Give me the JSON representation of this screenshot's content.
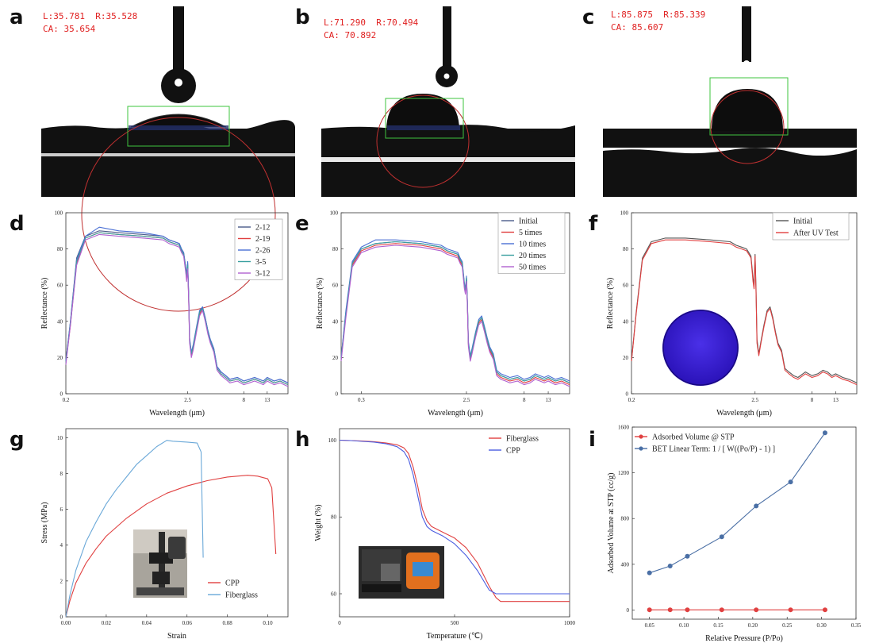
{
  "panel_letters": [
    "a",
    "b",
    "c",
    "d",
    "e",
    "f",
    "g",
    "h",
    "i"
  ],
  "contact_angle": [
    {
      "panel": "a",
      "line1": "L:35.781  R:35.528",
      "line2": "CA: 35.654"
    },
    {
      "panel": "b",
      "line1": "L:71.290  R:70.494",
      "line2": "CA: 70.892"
    },
    {
      "panel": "c",
      "line1": "L:85.875  R:85.339",
      "line2": "CA: 85.607"
    }
  ],
  "colors": {
    "red": "#e04040",
    "blue": "#4a6cd4",
    "slate": "#4a6fa5",
    "ca_text": "#e02020",
    "uv_disk": "#3b22d6"
  },
  "chart_data": [
    {
      "panel": "d",
      "type": "line",
      "xscale": "log",
      "xlabel": "Wavelength (μm)",
      "ylabel": "Reflectance (%)",
      "xlim": [
        0.2,
        20
      ],
      "ylim": [
        0,
        100
      ],
      "xticks": [
        0.2,
        2.5,
        8,
        13
      ],
      "xtick_labels": [
        "0.2",
        "2.5",
        "8",
        "13"
      ],
      "yticks": [
        0,
        20,
        40,
        60,
        80,
        100
      ],
      "ytick_labels": [
        "0",
        "20",
        "40",
        "60",
        "80",
        "100"
      ],
      "legend": "top-right",
      "x": [
        0.2,
        0.22,
        0.25,
        0.3,
        0.4,
        0.6,
        1.0,
        1.5,
        1.7,
        1.9,
        2.1,
        2.2,
        2.3,
        2.4,
        2.45,
        2.5,
        2.55,
        2.6,
        2.7,
        2.8,
        3.0,
        3.2,
        3.4,
        3.6,
        3.8,
        4.0,
        4.3,
        4.6,
        5.0,
        5.5,
        6,
        7,
        8,
        9,
        10,
        11,
        12,
        13,
        15,
        17,
        20
      ],
      "series": [
        {
          "name": "2-12",
          "color": "#4a5a8a",
          "values": [
            18,
            40,
            75,
            87,
            90,
            89,
            88,
            87,
            85,
            84,
            83,
            80,
            78,
            70,
            65,
            72,
            55,
            30,
            22,
            26,
            36,
            45,
            48,
            42,
            35,
            30,
            25,
            15,
            12,
            10,
            8,
            9,
            7,
            8,
            9,
            8,
            7,
            9,
            7,
            8,
            6
          ]
        },
        {
          "name": "2-19",
          "color": "#e04040",
          "values": [
            17,
            38,
            72,
            86,
            89,
            88,
            87,
            86,
            84,
            83,
            82,
            79,
            77,
            68,
            63,
            70,
            53,
            29,
            21,
            25,
            35,
            44,
            47,
            41,
            34,
            29,
            24,
            14,
            11,
            9,
            7,
            8,
            6,
            7,
            8,
            7,
            6,
            8,
            6,
            7,
            5
          ]
        },
        {
          "name": "2-26",
          "color": "#4a6fd4",
          "values": [
            18,
            40,
            74,
            87,
            92,
            90,
            89,
            87,
            85,
            84,
            83,
            80,
            78,
            70,
            66,
            73,
            56,
            31,
            23,
            27,
            37,
            46,
            48,
            42,
            35,
            30,
            25,
            15,
            12,
            10,
            8,
            9,
            7,
            8,
            9,
            8,
            7,
            9,
            7,
            8,
            6
          ]
        },
        {
          "name": "3-5",
          "color": "#3aa0a0",
          "values": [
            17,
            39,
            73,
            86,
            89,
            88,
            87,
            86,
            84,
            83,
            82,
            79,
            77,
            69,
            64,
            71,
            54,
            30,
            22,
            26,
            36,
            45,
            47,
            41,
            34,
            29,
            24,
            14,
            11,
            9,
            7,
            8,
            6,
            7,
            8,
            7,
            6,
            8,
            6,
            7,
            5
          ]
        },
        {
          "name": "3-12",
          "color": "#b060d0",
          "values": [
            16,
            38,
            71,
            85,
            88,
            87,
            86,
            85,
            83,
            82,
            81,
            78,
            76,
            67,
            62,
            69,
            52,
            28,
            20,
            24,
            34,
            43,
            46,
            40,
            33,
            28,
            23,
            13,
            10,
            8,
            6,
            7,
            5,
            6,
            7,
            6,
            5,
            7,
            5,
            6,
            4
          ]
        }
      ]
    },
    {
      "panel": "e",
      "type": "line",
      "xscale": "log",
      "xlabel": "Wavelength (μm)",
      "ylabel": "Reflectance (%)",
      "xlim": [
        0.2,
        20
      ],
      "ylim": [
        0,
        100
      ],
      "xticks": [
        0.3,
        2.5,
        8,
        13
      ],
      "xtick_labels": [
        "0.3",
        "2.5",
        "8",
        "13"
      ],
      "yticks": [
        0,
        20,
        40,
        60,
        80,
        100
      ],
      "ytick_labels": [
        "0",
        "20",
        "40",
        "60",
        "80",
        "100"
      ],
      "legend": "top-right",
      "x": [
        0.2,
        0.22,
        0.25,
        0.3,
        0.4,
        0.6,
        1.0,
        1.5,
        1.7,
        1.9,
        2.1,
        2.2,
        2.3,
        2.4,
        2.45,
        2.5,
        2.55,
        2.6,
        2.7,
        2.8,
        3.0,
        3.2,
        3.4,
        3.6,
        3.8,
        4.0,
        4.3,
        4.6,
        5.0,
        5.5,
        6,
        7,
        8,
        9,
        10,
        11,
        12,
        13,
        15,
        17,
        20
      ],
      "series": [
        {
          "name": "Initial",
          "color": "#4a5a8a",
          "values": [
            20,
            45,
            72,
            80,
            83,
            84,
            83,
            81,
            79,
            78,
            77,
            74,
            72,
            60,
            57,
            64,
            50,
            28,
            20,
            24,
            33,
            40,
            42,
            36,
            30,
            25,
            21,
            12,
            10,
            9,
            8,
            9,
            7,
            8,
            10,
            9,
            8,
            9,
            7,
            8,
            6
          ]
        },
        {
          "name": "5 times",
          "color": "#e04040",
          "values": [
            19,
            44,
            71,
            79,
            82,
            83,
            82,
            80,
            78,
            77,
            76,
            73,
            71,
            59,
            56,
            63,
            49,
            27,
            19,
            23,
            32,
            39,
            41,
            35,
            29,
            24,
            20,
            11,
            9,
            8,
            7,
            8,
            6,
            7,
            9,
            8,
            7,
            8,
            6,
            7,
            5
          ]
        },
        {
          "name": "10 times",
          "color": "#4a6fd4",
          "values": [
            20,
            46,
            73,
            81,
            85,
            85,
            84,
            82,
            80,
            79,
            78,
            75,
            73,
            61,
            58,
            65,
            51,
            29,
            21,
            25,
            34,
            41,
            43,
            37,
            31,
            26,
            22,
            13,
            11,
            10,
            9,
            10,
            8,
            9,
            11,
            10,
            9,
            10,
            8,
            9,
            7
          ]
        },
        {
          "name": "20 times",
          "color": "#3aa0a0",
          "values": [
            19,
            44,
            72,
            80,
            83,
            84,
            83,
            81,
            79,
            78,
            77,
            74,
            72,
            60,
            57,
            64,
            50,
            28,
            20,
            24,
            33,
            40,
            42,
            36,
            30,
            25,
            21,
            12,
            10,
            9,
            8,
            9,
            7,
            8,
            10,
            9,
            8,
            9,
            7,
            8,
            6
          ]
        },
        {
          "name": "50 times",
          "color": "#b060d0",
          "values": [
            18,
            42,
            70,
            78,
            81,
            82,
            81,
            79,
            77,
            76,
            75,
            72,
            70,
            58,
            55,
            62,
            48,
            26,
            18,
            22,
            31,
            38,
            40,
            34,
            28,
            23,
            19,
            10,
            8,
            7,
            6,
            7,
            5,
            6,
            8,
            7,
            6,
            7,
            5,
            6,
            4
          ]
        }
      ]
    },
    {
      "panel": "f",
      "type": "line",
      "xscale": "log",
      "xlabel": "Wavelength (μm)",
      "ylabel": "Reflectance (%)",
      "xlim": [
        0.2,
        20
      ],
      "ylim": [
        0,
        100
      ],
      "xticks": [
        0.2,
        2.5,
        8,
        13
      ],
      "xtick_labels": [
        "0.2",
        "2.5",
        "8",
        "13"
      ],
      "yticks": [
        0,
        20,
        40,
        60,
        80,
        100
      ],
      "ytick_labels": [
        "0",
        "20",
        "40",
        "60",
        "80",
        "100"
      ],
      "legend": "top-right",
      "x": [
        0.2,
        0.22,
        0.25,
        0.3,
        0.4,
        0.6,
        1.0,
        1.5,
        1.7,
        1.9,
        2.1,
        2.2,
        2.3,
        2.4,
        2.45,
        2.5,
        2.55,
        2.6,
        2.7,
        2.8,
        3.0,
        3.2,
        3.4,
        3.6,
        3.8,
        4.0,
        4.3,
        4.6,
        5.0,
        5.5,
        6,
        7,
        8,
        9,
        10,
        11,
        12,
        13,
        15,
        17,
        20
      ],
      "series": [
        {
          "name": "Initial",
          "color": "#555555",
          "values": [
            18,
            45,
            75,
            84,
            86,
            86,
            85,
            84,
            82,
            81,
            80,
            78,
            76,
            64,
            60,
            77,
            58,
            30,
            22,
            28,
            38,
            46,
            48,
            42,
            34,
            28,
            24,
            14,
            12,
            10,
            9,
            12,
            10,
            11,
            13,
            12,
            10,
            11,
            9,
            8,
            6
          ]
        },
        {
          "name": "After UV Test",
          "color": "#e04040",
          "values": [
            18,
            44,
            74,
            83,
            85,
            85,
            84,
            83,
            81,
            80,
            79,
            77,
            75,
            62,
            58,
            76,
            56,
            28,
            21,
            27,
            37,
            45,
            47,
            41,
            33,
            27,
            23,
            13,
            11,
            9,
            8,
            11,
            9,
            10,
            12,
            11,
            9,
            10,
            8,
            7,
            5
          ]
        }
      ]
    },
    {
      "panel": "g",
      "type": "line",
      "xlabel": "Strain",
      "ylabel": "Stress (MPa)",
      "xlim": [
        0,
        0.11
      ],
      "ylim": [
        0,
        10.5
      ],
      "xticks": [
        0,
        0.02,
        0.04,
        0.06,
        0.08,
        0.1
      ],
      "xtick_labels": [
        "0.00",
        "0.02",
        "0.04",
        "0.06",
        "0.08",
        "0.10"
      ],
      "yticks": [
        0,
        2,
        4,
        6,
        8,
        10
      ],
      "ytick_labels": [
        "0",
        "2",
        "4",
        "6",
        "8",
        "10"
      ],
      "legend": "bottom-right",
      "series": [
        {
          "name": "CPP",
          "color": "#e04040",
          "x": [
            0,
            0.002,
            0.005,
            0.01,
            0.015,
            0.02,
            0.03,
            0.04,
            0.05,
            0.06,
            0.07,
            0.08,
            0.09,
            0.095,
            0.1,
            0.102,
            0.104
          ],
          "y": [
            0,
            0.9,
            1.9,
            3.0,
            3.8,
            4.5,
            5.5,
            6.3,
            6.9,
            7.3,
            7.6,
            7.8,
            7.9,
            7.85,
            7.7,
            7.2,
            3.5
          ]
        },
        {
          "name": "Fiberglass",
          "color": "#6aa8d8",
          "x": [
            0,
            0.002,
            0.005,
            0.01,
            0.015,
            0.02,
            0.025,
            0.03,
            0.035,
            0.04,
            0.045,
            0.05,
            0.053,
            0.06,
            0.065,
            0.067,
            0.068
          ],
          "y": [
            0,
            1.2,
            2.6,
            4.2,
            5.3,
            6.3,
            7.1,
            7.8,
            8.5,
            9.0,
            9.5,
            9.85,
            9.8,
            9.75,
            9.7,
            9.2,
            3.3
          ]
        }
      ]
    },
    {
      "panel": "h",
      "type": "line",
      "xlabel": "Temperature (℃)",
      "ylabel": "Weight (%)",
      "xlim": [
        0,
        1000
      ],
      "ylim": [
        54,
        103
      ],
      "xticks": [
        0,
        500,
        1000
      ],
      "xtick_labels": [
        "0",
        "500",
        "1000"
      ],
      "yticks": [
        60,
        80,
        100
      ],
      "ytick_labels": [
        "60",
        "80",
        "100"
      ],
      "legend": "top-right",
      "series": [
        {
          "name": "Fiberglass",
          "color": "#e04040",
          "x": [
            0,
            50,
            100,
            150,
            200,
            250,
            280,
            300,
            320,
            340,
            360,
            380,
            400,
            450,
            500,
            550,
            600,
            650,
            680,
            700,
            750,
            800,
            900,
            1000
          ],
          "y": [
            100,
            99.9,
            99.8,
            99.6,
            99.3,
            98.8,
            98,
            96.5,
            93,
            88,
            82,
            79,
            77.5,
            76,
            74.5,
            72,
            68,
            62,
            59,
            58,
            58,
            58,
            58,
            58
          ]
        },
        {
          "name": "CPP",
          "color": "#4a5ce0",
          "x": [
            0,
            50,
            100,
            150,
            200,
            250,
            280,
            300,
            320,
            340,
            360,
            380,
            400,
            450,
            500,
            550,
            600,
            650,
            680,
            700,
            750,
            800,
            900,
            1000
          ],
          "y": [
            100,
            99.9,
            99.7,
            99.5,
            99.1,
            98.3,
            97,
            95,
            91,
            85.5,
            80,
            77.5,
            76.5,
            75,
            73,
            70,
            66,
            61,
            60,
            60,
            60,
            60,
            60,
            60
          ]
        }
      ]
    },
    {
      "panel": "i",
      "type": "line",
      "xlabel": "Relative Pressure (P/Po)",
      "ylabel": "Adsorbed Volume at STP (cc/g)",
      "xlim": [
        0.025,
        0.35
      ],
      "ylim": [
        -80,
        1600
      ],
      "xticks": [
        0.05,
        0.1,
        0.15,
        0.2,
        0.25,
        0.3,
        0.35
      ],
      "xtick_labels": [
        "0.05",
        "0.10",
        "0.15",
        "0.20",
        "0.25",
        "0.30",
        "0.35"
      ],
      "yticks": [
        0,
        400,
        800,
        1200,
        1600
      ],
      "ytick_labels": [
        "0",
        "400",
        "800",
        "1200",
        "1600"
      ],
      "legend": "top-left",
      "series": [
        {
          "name": "Adsorbed Volume @ STP",
          "color": "#e04040",
          "x": [
            0.05,
            0.08,
            0.105,
            0.155,
            0.205,
            0.255,
            0.305
          ],
          "y": [
            2,
            2,
            2,
            2,
            2,
            2,
            2
          ]
        },
        {
          "name": "BET Linear Term: 1 / [ W((Po/P) - 1) ]",
          "color": "#4a6fa5",
          "x": [
            0.05,
            0.08,
            0.105,
            0.155,
            0.205,
            0.255,
            0.305
          ],
          "y": [
            325,
            385,
            470,
            640,
            910,
            1120,
            1550
          ]
        }
      ]
    }
  ]
}
